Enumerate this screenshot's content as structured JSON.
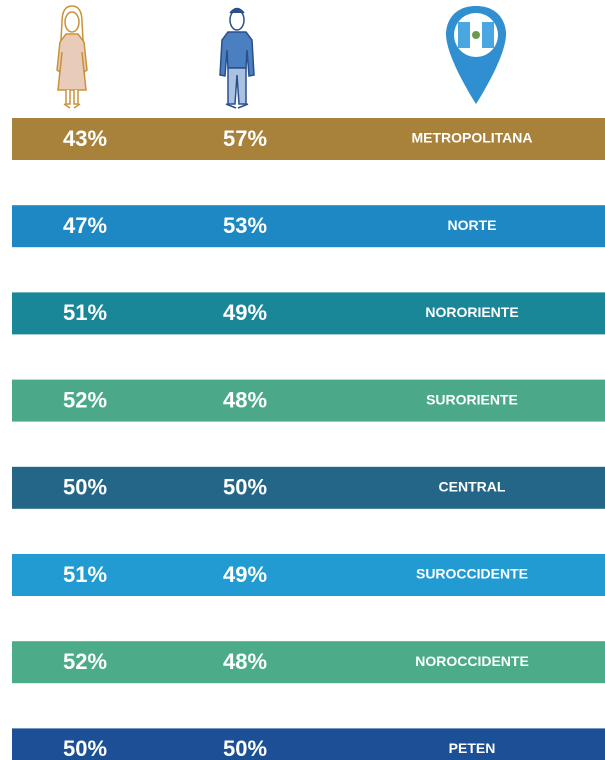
{
  "rows": [
    {
      "women": "43%",
      "men": "57%",
      "region": "METROPOLITANA",
      "color": "#a8823a"
    },
    {
      "women": "47%",
      "men": "53%",
      "region": "NORTE",
      "color": "#1e88c4"
    },
    {
      "women": "51%",
      "men": "49%",
      "region": "NORORIENTE",
      "color": "#1a8799"
    },
    {
      "women": "52%",
      "men": "48%",
      "region": "SURORIENTE",
      "color": "#4ba98a"
    },
    {
      "women": "50%",
      "men": "50%",
      "region": "CENTRAL",
      "color": "#236688"
    },
    {
      "women": "51%",
      "men": "49%",
      "region": "SUROCCIDENTE",
      "color": "#229bd3"
    },
    {
      "women": "52%",
      "men": "48%",
      "region": "NOROCCIDENTE",
      "color": "#4cab89"
    },
    {
      "women": "50%",
      "men": "50%",
      "region": "PETEN",
      "color": "#1b4f96"
    }
  ]
}
